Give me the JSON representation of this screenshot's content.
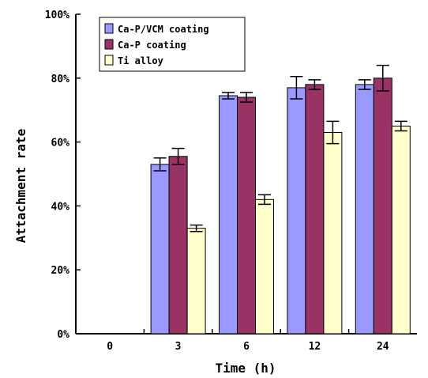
{
  "chart_data": {
    "type": "bar",
    "title": "",
    "xlabel": "Time (h)",
    "ylabel": "Attachment rate",
    "categories": [
      "0",
      "3",
      "6",
      "12",
      "24"
    ],
    "ylim": [
      0,
      100
    ],
    "yticks": [
      "0%",
      "20%",
      "40%",
      "60%",
      "80%",
      "100%"
    ],
    "grid": false,
    "legend_position": "top-left",
    "series": [
      {
        "name": "Ca-P/VCM coating",
        "color": "#9999ff",
        "values": [
          null,
          53,
          74.5,
          77,
          78
        ],
        "errors": [
          null,
          2,
          1,
          3.5,
          1.5
        ]
      },
      {
        "name": "Ca-P coating",
        "color": "#993366",
        "values": [
          null,
          55.5,
          74,
          78,
          80
        ],
        "errors": [
          null,
          2.5,
          1.5,
          1.5,
          4
        ]
      },
      {
        "name": "Ti alloy",
        "color": "#ffffcc",
        "values": [
          null,
          33,
          42,
          63,
          65
        ],
        "errors": [
          null,
          1,
          1.5,
          3.5,
          1.5
        ]
      }
    ]
  }
}
